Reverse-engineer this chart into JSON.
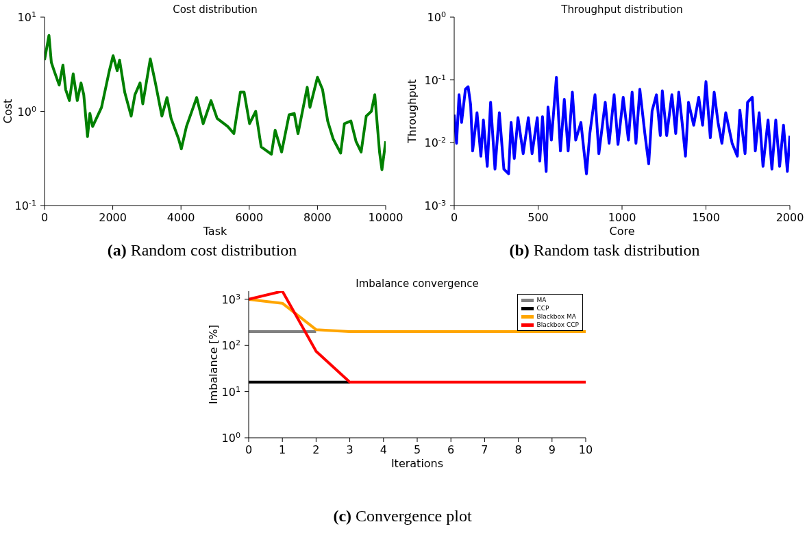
{
  "chart_data": [
    {
      "type": "line",
      "title": "Cost distribution",
      "xlabel": "Task",
      "ylabel": "Cost",
      "log": "y",
      "grid": false,
      "legend": false,
      "xlim": [
        0,
        10000
      ],
      "xticks": [
        0,
        2000,
        4000,
        6000,
        8000,
        10000
      ],
      "ylim": [
        0.1,
        10
      ],
      "yticks": [
        {
          "value": 0.1,
          "label": "10$^{-1}$"
        },
        {
          "value": 1,
          "label": "10$^{0}$"
        },
        {
          "value": 10,
          "label": "10$^{1}$"
        }
      ],
      "x": [
        0,
        130,
        200,
        280,
        430,
        540,
        620,
        730,
        840,
        960,
        1070,
        1150,
        1260,
        1330,
        1410,
        1670,
        1900,
        2010,
        2130,
        2200,
        2350,
        2540,
        2650,
        2800,
        2880,
        3100,
        3250,
        3440,
        3590,
        3710,
        3930,
        4010,
        4160,
        4460,
        4650,
        4880,
        5060,
        5370,
        5550,
        5740,
        5850,
        6010,
        6190,
        6350,
        6650,
        6760,
        6950,
        7170,
        7320,
        7430,
        7700,
        7780,
        8000,
        8150,
        8300,
        8460,
        8680,
        8790,
        8980,
        9130,
        9280,
        9430,
        9580,
        9680,
        9820,
        9890,
        10000
      ],
      "series": [
        {
          "color": "#008000",
          "values": [
            3.5,
            6.4,
            3.3,
            2.7,
            1.9,
            3.1,
            1.7,
            1.3,
            2.5,
            1.3,
            2.0,
            1.5,
            0.54,
            0.95,
            0.69,
            1.1,
            2.7,
            3.9,
            2.7,
            3.5,
            1.6,
            0.89,
            1.5,
            2.0,
            1.2,
            3.6,
            2.0,
            0.89,
            1.4,
            0.84,
            0.51,
            0.4,
            0.69,
            1.4,
            0.74,
            1.3,
            0.84,
            0.69,
            0.58,
            1.6,
            1.6,
            0.74,
            1.0,
            0.42,
            0.35,
            0.63,
            0.37,
            0.92,
            0.95,
            0.58,
            1.8,
            1.1,
            2.3,
            1.7,
            0.79,
            0.51,
            0.36,
            0.74,
            0.79,
            0.48,
            0.37,
            0.89,
            1.0,
            1.5,
            0.37,
            0.24,
            0.48
          ]
        }
      ],
      "annotations": [
        "(a) Random cost distribution"
      ]
    },
    {
      "type": "line",
      "title": "Throughput distribution",
      "xlabel": "Core",
      "ylabel": "Throughput",
      "log": "y",
      "grid": false,
      "legend": false,
      "xlim": [
        0,
        2000
      ],
      "xticks": [
        0,
        500,
        1000,
        1500,
        2000
      ],
      "ylim": [
        0.001,
        1
      ],
      "yticks": [
        {
          "value": 0.001,
          "label": "10$^{-3}$"
        },
        {
          "value": 0.01,
          "label": "10$^{-2}$"
        },
        {
          "value": 0.1,
          "label": "10$^{-1}$"
        },
        {
          "value": 1,
          "label": "10$^{0}$"
        }
      ],
      "x": [
        0,
        14,
        29,
        44,
        67,
        83,
        98,
        110,
        136,
        159,
        174,
        197,
        217,
        243,
        269,
        296,
        324,
        339,
        358,
        380,
        411,
        442,
        464,
        495,
        510,
        526,
        548,
        559,
        579,
        609,
        633,
        656,
        679,
        704,
        724,
        755,
        788,
        808,
        839,
        862,
        900,
        923,
        953,
        976,
        1007,
        1038,
        1060,
        1083,
        1106,
        1136,
        1159,
        1179,
        1205,
        1228,
        1240,
        1266,
        1297,
        1320,
        1338,
        1358,
        1378,
        1396,
        1427,
        1457,
        1480,
        1500,
        1526,
        1549,
        1572,
        1595,
        1618,
        1656,
        1687,
        1702,
        1733,
        1748,
        1776,
        1794,
        1817,
        1840,
        1870,
        1893,
        1916,
        1939,
        1962,
        1985,
        2000
      ],
      "series": [
        {
          "color": "#0000ff",
          "values": [
            0.028,
            0.0098,
            0.058,
            0.021,
            0.071,
            0.078,
            0.04,
            0.0074,
            0.03,
            0.0061,
            0.023,
            0.0042,
            0.044,
            0.0038,
            0.03,
            0.0038,
            0.0032,
            0.021,
            0.0056,
            0.025,
            0.0067,
            0.025,
            0.0067,
            0.025,
            0.0051,
            0.026,
            0.0035,
            0.037,
            0.011,
            0.11,
            0.0074,
            0.049,
            0.0074,
            0.064,
            0.011,
            0.021,
            0.0032,
            0.014,
            0.058,
            0.0067,
            0.044,
            0.0098,
            0.058,
            0.0094,
            0.053,
            0.011,
            0.064,
            0.0098,
            0.071,
            0.014,
            0.0046,
            0.032,
            0.058,
            0.013,
            0.067,
            0.013,
            0.058,
            0.014,
            0.064,
            0.021,
            0.0061,
            0.044,
            0.019,
            0.053,
            0.019,
            0.094,
            0.012,
            0.064,
            0.021,
            0.0098,
            0.03,
            0.0098,
            0.0061,
            0.033,
            0.0067,
            0.044,
            0.053,
            0.0074,
            0.03,
            0.0042,
            0.023,
            0.0038,
            0.023,
            0.0042,
            0.019,
            0.0035,
            0.013
          ]
        }
      ],
      "annotations": [
        "(b) Random task distribution"
      ]
    },
    {
      "type": "line",
      "title": "Imbalance convergence",
      "xlabel": "Iterations",
      "ylabel": "Imbalance [%]",
      "log": "y",
      "grid": false,
      "legend": "top right",
      "xlim": [
        0,
        10
      ],
      "xticks": [
        0,
        1,
        2,
        3,
        4,
        5,
        6,
        7,
        8,
        9,
        10
      ],
      "ylim": [
        1,
        1500
      ],
      "yticks": [
        {
          "value": 1,
          "label": "10$^{0}$"
        },
        {
          "value": 10,
          "label": "10$^{1}$"
        },
        {
          "value": 100,
          "label": "10$^{2}$"
        },
        {
          "value": 1000,
          "label": "10$^{3}$"
        }
      ],
      "x": [
        0,
        1,
        2,
        3,
        4,
        5,
        6,
        7,
        8,
        9,
        10
      ],
      "series": [
        {
          "name": "MA",
          "color": "#808080",
          "values": [
            200,
            200,
            200,
            null,
            null,
            null,
            null,
            null,
            null,
            null,
            null
          ]
        },
        {
          "name": "CCP",
          "color": "#000000",
          "values": [
            16,
            16,
            16,
            16,
            null,
            null,
            null,
            null,
            null,
            null,
            null
          ]
        },
        {
          "name": "Blackbox MA",
          "color": "#ffa500",
          "values": [
            1000,
            820,
            220,
            200,
            200,
            200,
            200,
            200,
            200,
            200,
            200
          ]
        },
        {
          "name": "Blackbox CCP",
          "color": "#ff0000",
          "values": [
            1000,
            1500,
            75,
            16,
            16,
            16,
            16,
            16,
            16,
            16,
            16
          ]
        }
      ],
      "annotations": [
        "(c) Convergence plot"
      ]
    }
  ]
}
